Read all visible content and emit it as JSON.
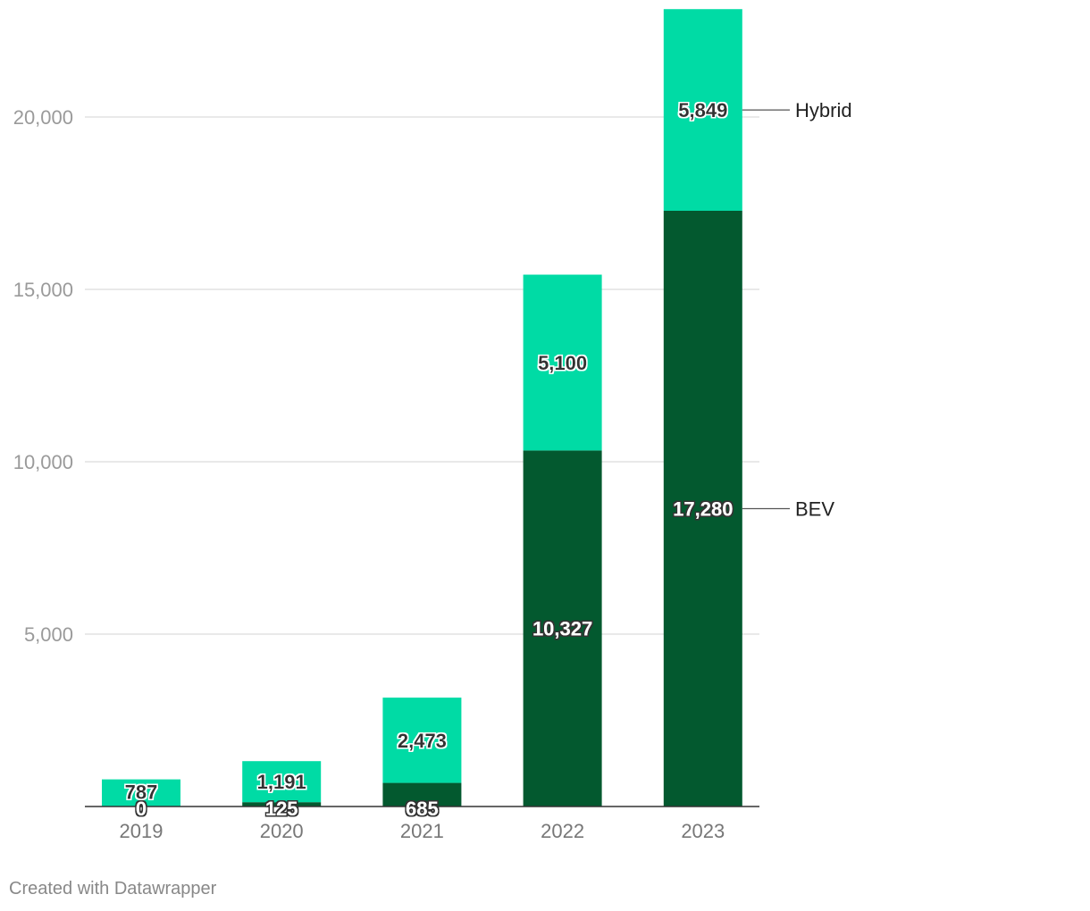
{
  "chart_data": {
    "type": "bar",
    "stacked": true,
    "categories": [
      "2019",
      "2020",
      "2021",
      "2022",
      "2023"
    ],
    "series": [
      {
        "name": "BEV",
        "values": [
          0,
          125,
          685,
          10327,
          17280
        ],
        "labels": [
          "0",
          "125",
          "685",
          "10,327",
          "17,280"
        ],
        "color": "#03592f"
      },
      {
        "name": "Hybrid",
        "values": [
          787,
          1191,
          2473,
          5100,
          5849
        ],
        "labels": [
          "787",
          "1,191",
          "2,473",
          "5,100",
          "5,849"
        ],
        "color": "#00dba5"
      }
    ],
    "y_ticks": [
      5000,
      10000,
      15000,
      20000
    ],
    "y_tick_labels": [
      "5,000",
      "10,000",
      "15,000",
      "20,000"
    ],
    "ylim": [
      0,
      23129
    ],
    "grid": true,
    "legend": "right, direct labels",
    "title": "",
    "xlabel": "",
    "ylabel": ""
  },
  "footer": {
    "credit": "Created with Datawrapper"
  }
}
